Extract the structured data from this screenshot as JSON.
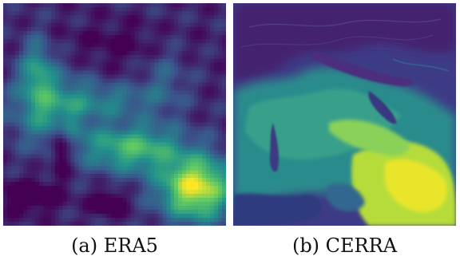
{
  "figure": {
    "panels": [
      {
        "caption": "(a) ERA5"
      },
      {
        "caption": "(b) CERRA"
      }
    ],
    "colormap": [
      "#440154",
      "#3b528b",
      "#21918c",
      "#5ec962",
      "#fde725"
    ]
  }
}
